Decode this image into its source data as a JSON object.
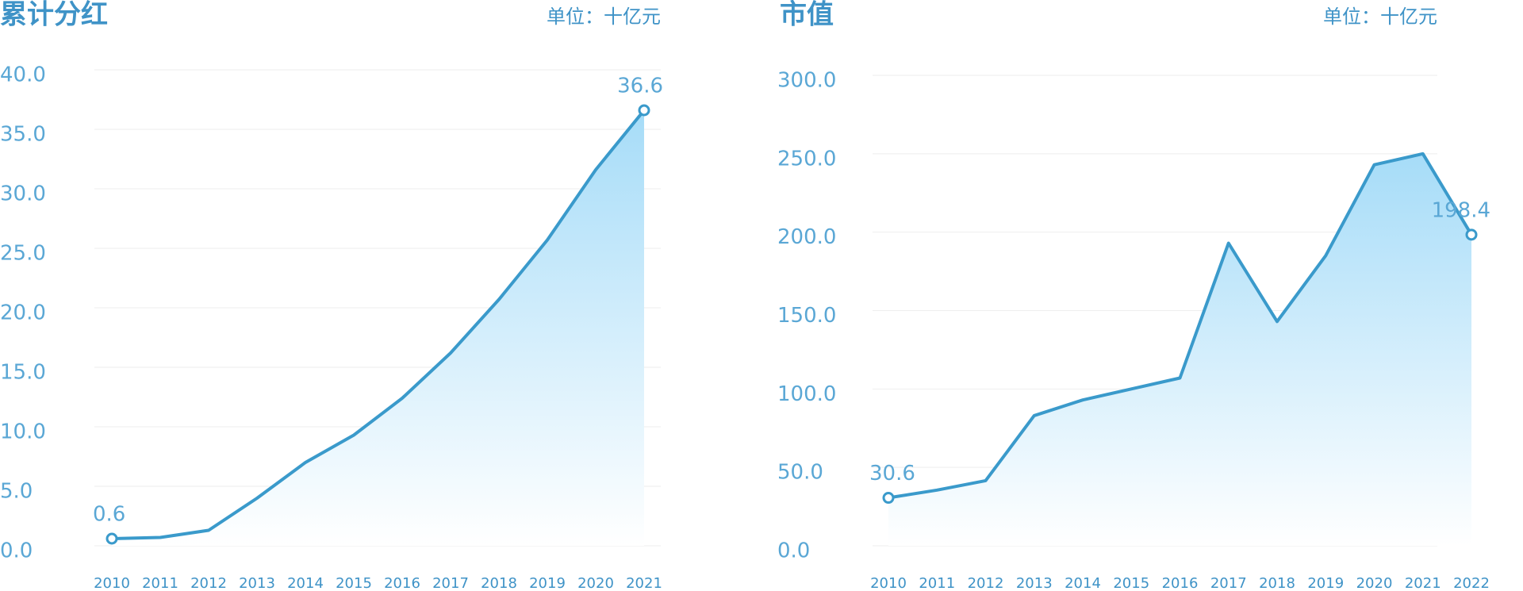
{
  "chart_data": [
    {
      "type": "area",
      "title": "累计分红",
      "subtitle": "单位：十亿元",
      "categories": [
        "2010",
        "2011",
        "2012",
        "2013",
        "2014",
        "2015",
        "2016",
        "2017",
        "2018",
        "2019",
        "2020",
        "2021"
      ],
      "series": [
        {
          "color": "#3a9acb",
          "values": [
            0.6,
            0.7,
            1.3,
            4.0,
            7.0,
            9.3,
            12.4,
            16.2,
            20.7,
            25.7,
            31.6,
            36.6
          ],
          "value_labels": [
            "0.6",
            null,
            null,
            null,
            null,
            null,
            null,
            null,
            null,
            null,
            null,
            "36.6"
          ]
        }
      ],
      "ylim": [
        0,
        40
      ],
      "yticks": [
        {
          "value": 0,
          "label": "0.0"
        },
        {
          "value": 5,
          "label": "5.0"
        },
        {
          "value": 10,
          "label": "10.0"
        },
        {
          "value": 15,
          "label": "15.0"
        },
        {
          "value": 20,
          "label": "20.0"
        },
        {
          "value": 25,
          "label": "25.0"
        },
        {
          "value": 30,
          "label": "30.0"
        },
        {
          "value": 35,
          "label": "35.0"
        },
        {
          "value": 40,
          "label": "40.0"
        }
      ],
      "grid": true
    },
    {
      "type": "area",
      "title": "市值",
      "subtitle": "单位：十亿元",
      "categories": [
        "2010",
        "2011",
        "2012",
        "2013",
        "2014",
        "2015",
        "2016",
        "2017",
        "2018",
        "2019",
        "2020",
        "2021",
        "2022"
      ],
      "series": [
        {
          "color": "#3a9acb",
          "values": [
            30.6,
            35.5,
            41.5,
            83,
            93,
            100,
            107,
            193,
            143,
            185,
            243,
            250,
            198.4
          ],
          "value_labels": [
            "30.6",
            null,
            null,
            null,
            null,
            null,
            null,
            null,
            null,
            null,
            null,
            null,
            "198.4"
          ]
        }
      ],
      "ylim": [
        0,
        300
      ],
      "yticks": [
        {
          "value": 0,
          "label": "0.0"
        },
        {
          "value": 50,
          "label": "50.0"
        },
        {
          "value": 100,
          "label": "100.0"
        },
        {
          "value": 150,
          "label": "150.0"
        },
        {
          "value": 200,
          "label": "200.0"
        },
        {
          "value": 250,
          "label": "250.0"
        },
        {
          "value": 300,
          "label": "300.0"
        }
      ],
      "grid": true
    }
  ]
}
